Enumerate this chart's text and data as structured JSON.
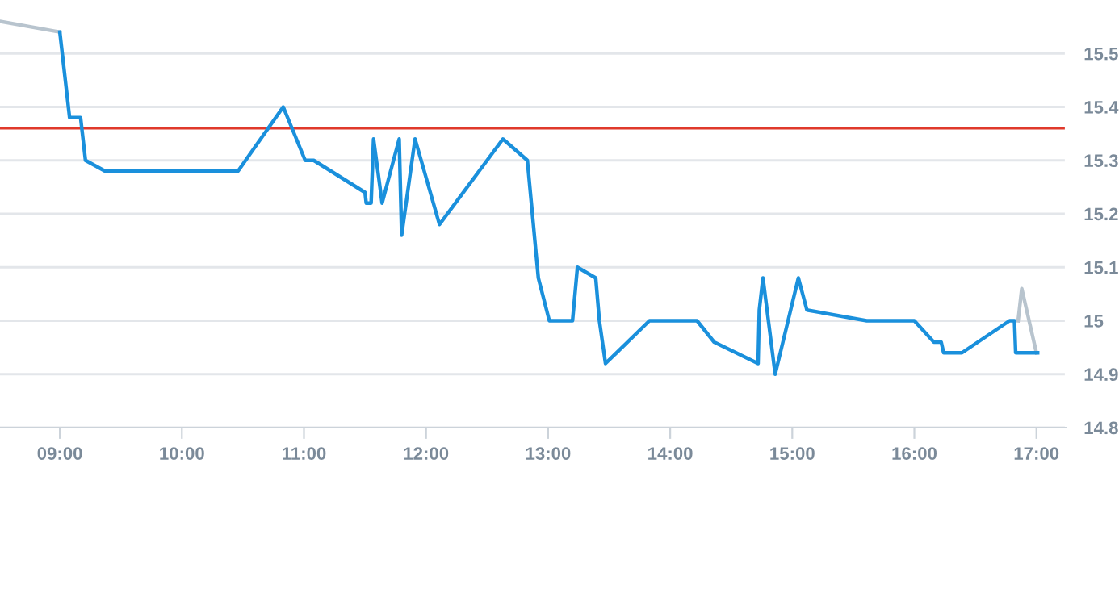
{
  "chart_data": {
    "type": "line",
    "xlim": [
      8.51,
      17.24
    ],
    "ylim": [
      14.8,
      15.6
    ],
    "xticks": [
      {
        "value": 9,
        "label": "09:00"
      },
      {
        "value": 10,
        "label": "10:00"
      },
      {
        "value": 11,
        "label": "11:00"
      },
      {
        "value": 12,
        "label": "12:00"
      },
      {
        "value": 13,
        "label": "13:00"
      },
      {
        "value": 14,
        "label": "14:00"
      },
      {
        "value": 15,
        "label": "15:00"
      },
      {
        "value": 16,
        "label": "16:00"
      },
      {
        "value": 17,
        "label": "17:00"
      }
    ],
    "yticks": [
      14.8,
      14.9,
      15,
      15.1,
      15.2,
      15.3,
      15.4,
      15.5
    ],
    "grid": "y",
    "legend": false,
    "series": [
      {
        "color": "#b8c4ce",
        "x": [
          8.51,
          9.0
        ],
        "values": [
          15.56,
          15.54
        ]
      },
      {
        "color": "#b8c4ce",
        "x": [
          16.85,
          16.88,
          17.0
        ],
        "values": [
          15.0,
          15.06,
          14.94
        ]
      },
      {
        "color": "#1a90dc",
        "x": [
          9.0,
          9.08,
          9.17,
          9.21,
          9.37,
          10.46,
          10.83,
          11.01,
          11.08,
          11.5,
          11.51,
          11.55,
          11.57,
          11.64,
          11.78,
          11.8,
          11.91,
          12.11,
          12.63,
          12.83,
          12.92,
          13.01,
          13.2,
          13.24,
          13.39,
          13.42,
          13.47,
          13.83,
          14.22,
          14.36,
          14.72,
          14.73,
          14.76,
          14.86,
          15.05,
          15.12,
          15.61,
          16.0,
          16.16,
          16.22,
          16.24,
          16.39,
          16.78,
          16.82,
          16.83,
          17.01
        ],
        "values": [
          15.54,
          15.38,
          15.38,
          15.3,
          15.28,
          15.28,
          15.4,
          15.3,
          15.3,
          15.24,
          15.22,
          15.22,
          15.34,
          15.22,
          15.34,
          15.16,
          15.34,
          15.18,
          15.34,
          15.3,
          15.08,
          15.0,
          15.0,
          15.1,
          15.08,
          15.0,
          14.92,
          15.0,
          15.0,
          14.96,
          14.92,
          15.02,
          15.08,
          14.9,
          15.08,
          15.02,
          15.0,
          15.0,
          14.96,
          14.96,
          14.94,
          14.94,
          15.0,
          15.0,
          14.94,
          14.94
        ]
      }
    ],
    "ref_lines": [
      {
        "axis": "y",
        "value": 15.36,
        "color": "#e0392b"
      }
    ]
  }
}
